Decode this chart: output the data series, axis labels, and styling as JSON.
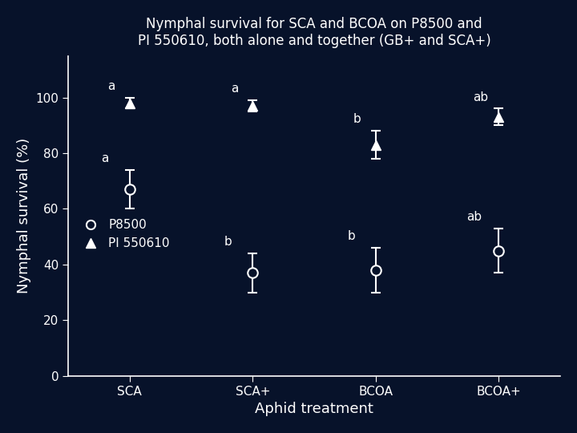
{
  "title": "Nymphal survival for SCA and BCOA on P8500 and\nPI 550610, both alone and together (GB+ and SCA+)",
  "xlabel": "Aphid treatment",
  "ylabel": "Nymphal survival (%)",
  "categories": [
    "SCA",
    "SCA+",
    "BCOA",
    "BCOA+"
  ],
  "p8500_means": [
    67,
    37,
    38,
    45
  ],
  "p8500_errors": [
    7,
    7,
    8,
    8
  ],
  "pi550610_means": [
    98,
    97,
    83,
    93
  ],
  "pi550610_errors": [
    2,
    2,
    5,
    3
  ],
  "p8500_labels": [
    "a",
    "b",
    "b",
    "ab"
  ],
  "pi550610_labels": [
    "a",
    "a",
    "b",
    "ab"
  ],
  "ylim": [
    0,
    115
  ],
  "yticks": [
    0,
    20,
    40,
    60,
    80,
    100
  ],
  "background_color": "#07122a",
  "text_color": "#ffffff",
  "marker_color": "#ffffff",
  "legend_p8500": "P8500",
  "legend_pi550610": "PI 550610",
  "title_fontsize": 12,
  "label_fontsize": 13,
  "tick_fontsize": 11,
  "annot_fontsize": 11
}
